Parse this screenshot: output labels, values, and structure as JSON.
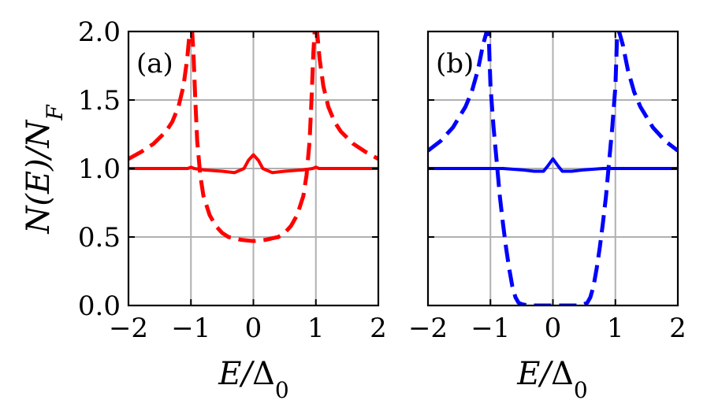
{
  "chart_data": [
    {
      "type": "line",
      "panel_label": "(a)",
      "xlabel": "E/Δ0",
      "ylabel": "N(E)/NF",
      "xlim": [
        -2,
        2
      ],
      "ylim": [
        0,
        2
      ],
      "xticks": [
        "−2",
        "−1",
        "0",
        "1",
        "2"
      ],
      "yticks": [
        "0.0",
        "0.5",
        "1.0",
        "1.5",
        "2.0"
      ],
      "grid": true,
      "series": [
        {
          "style": "solid",
          "color": "#ff0000",
          "x": [
            -2,
            -1.5,
            -1.2,
            -1.05,
            -1.0,
            -0.95,
            -0.8,
            -0.5,
            -0.3,
            -0.15,
            -0.08,
            0,
            0.08,
            0.15,
            0.3,
            0.5,
            0.8,
            0.95,
            1.0,
            1.05,
            1.2,
            1.5,
            2
          ],
          "y": [
            1.0,
            1.0,
            1.0,
            1.0,
            1.01,
            1.0,
            0.99,
            0.98,
            0.97,
            1.0,
            1.06,
            1.1,
            1.06,
            1.0,
            0.97,
            0.98,
            0.99,
            1.0,
            1.01,
            1.0,
            1.0,
            1.0,
            1.0
          ]
        },
        {
          "style": "dashed",
          "color": "#ff0000",
          "x": [
            -2,
            -1.8,
            -1.6,
            -1.4,
            -1.3,
            -1.2,
            -1.12,
            -1.06,
            -1.02,
            -1.0,
            -0.98,
            -0.96,
            -0.93,
            -0.9,
            -0.85,
            -0.8,
            -0.7,
            -0.6,
            -0.5,
            -0.4,
            -0.3,
            -0.2,
            -0.1,
            0,
            0.1,
            0.2,
            0.3,
            0.4,
            0.5,
            0.6,
            0.7,
            0.8,
            0.85,
            0.9,
            0.93,
            0.96,
            0.98,
            1.0,
            1.02,
            1.06,
            1.12,
            1.2,
            1.3,
            1.4,
            1.6,
            1.8,
            2
          ],
          "y": [
            1.07,
            1.12,
            1.18,
            1.27,
            1.34,
            1.45,
            1.6,
            1.8,
            2.0,
            2.0,
            2.0,
            1.85,
            1.5,
            1.2,
            0.95,
            0.8,
            0.66,
            0.58,
            0.53,
            0.5,
            0.49,
            0.48,
            0.475,
            0.47,
            0.475,
            0.48,
            0.49,
            0.5,
            0.53,
            0.58,
            0.66,
            0.8,
            0.95,
            1.2,
            1.5,
            1.85,
            2.0,
            2.0,
            2.0,
            1.8,
            1.6,
            1.45,
            1.34,
            1.27,
            1.18,
            1.12,
            1.07
          ]
        }
      ]
    },
    {
      "type": "line",
      "panel_label": "(b)",
      "xlabel": "E/Δ0",
      "ylabel": "",
      "xlim": [
        -2,
        2
      ],
      "ylim": [
        0,
        2
      ],
      "xticks": [
        "−2",
        "−1",
        "0",
        "1",
        "2"
      ],
      "yticks": [
        "",
        "",
        "",
        "",
        ""
      ],
      "grid": true,
      "series": [
        {
          "style": "solid",
          "color": "#0000ff",
          "x": [
            -2,
            -1.5,
            -1.2,
            -1.0,
            -0.8,
            -0.5,
            -0.3,
            -0.15,
            -0.08,
            0,
            0.08,
            0.15,
            0.3,
            0.5,
            0.8,
            1.0,
            1.2,
            1.5,
            2
          ],
          "y": [
            1.0,
            1.0,
            1.0,
            1.0,
            1.0,
            0.99,
            0.98,
            0.98,
            1.02,
            1.07,
            1.02,
            0.98,
            0.98,
            0.99,
            1.0,
            1.0,
            1.0,
            1.0,
            1.0
          ],
          "marker_note": ""
        },
        {
          "style": "dashed",
          "color": "#0000ff",
          "x": [
            -2,
            -1.8,
            -1.6,
            -1.4,
            -1.3,
            -1.2,
            -1.12,
            -1.06,
            -1.03,
            -1.0,
            -0.95,
            -0.9,
            -0.85,
            -0.8,
            -0.75,
            -0.7,
            -0.65,
            -0.6,
            -0.55,
            -0.5,
            -0.4,
            -0.2,
            0,
            0.2,
            0.4,
            0.5,
            0.55,
            0.6,
            0.65,
            0.7,
            0.75,
            0.8,
            0.85,
            0.9,
            0.95,
            1.0,
            1.03,
            1.06,
            1.12,
            1.2,
            1.3,
            1.4,
            1.6,
            1.8,
            2
          ],
          "y": [
            1.13,
            1.2,
            1.3,
            1.45,
            1.56,
            1.72,
            1.9,
            2.0,
            2.0,
            1.6,
            1.3,
            1.05,
            0.8,
            0.6,
            0.42,
            0.27,
            0.14,
            0.06,
            0.02,
            0.01,
            0.0,
            0.0,
            0.0,
            0.0,
            0.0,
            0.01,
            0.02,
            0.06,
            0.14,
            0.27,
            0.42,
            0.6,
            0.8,
            1.05,
            1.3,
            1.6,
            2.0,
            2.0,
            1.9,
            1.72,
            1.56,
            1.45,
            1.3,
            1.2,
            1.13
          ]
        }
      ]
    }
  ]
}
